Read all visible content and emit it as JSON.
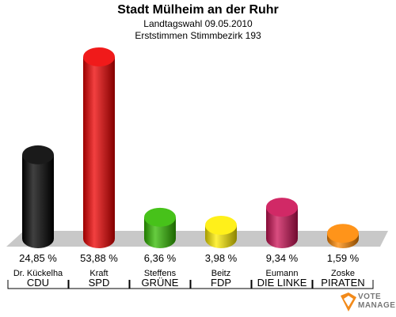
{
  "title": "Stadt Mülheim an der Ruhr",
  "subtitle1": "Landtagswahl 09.05.2010",
  "subtitle2": "Erststimmen Stimmbezirk 193",
  "logo": {
    "line1": "VOTE",
    "line2": "MANAGER",
    "color": "#f28a1a"
  },
  "chart_data": {
    "type": "bar",
    "title": "Stadt Mülheim an der Ruhr",
    "categories": [
      "CDU",
      "SPD",
      "GRÜNE",
      "FDP",
      "DIE LINKE",
      "PIRATEN"
    ],
    "candidates": [
      "Dr. Kückelha",
      "Kraft",
      "Steffens",
      "Beitz",
      "Eumann",
      "Zoske"
    ],
    "values": [
      24.85,
      53.88,
      6.36,
      3.98,
      9.34,
      1.59
    ],
    "value_labels": [
      "24,85 %",
      "53,88 %",
      "6,36 %",
      "3,98 %",
      "9,34 %",
      "1,59 %"
    ],
    "colors": [
      "#000000",
      "#ee0000",
      "#33bb00",
      "#ffee00",
      "#cc1155",
      "#ff8800"
    ],
    "ylim": [
      0,
      53.88
    ],
    "grid": false
  }
}
